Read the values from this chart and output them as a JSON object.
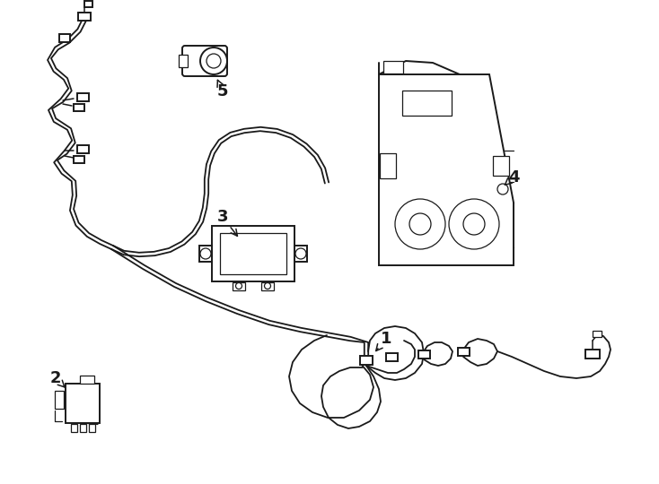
{
  "bg_color": "#ffffff",
  "lc": "#1a1a1a",
  "lw": 1.4,
  "tlw": 0.9,
  "figsize": [
    7.34,
    5.4
  ],
  "dpi": 100
}
